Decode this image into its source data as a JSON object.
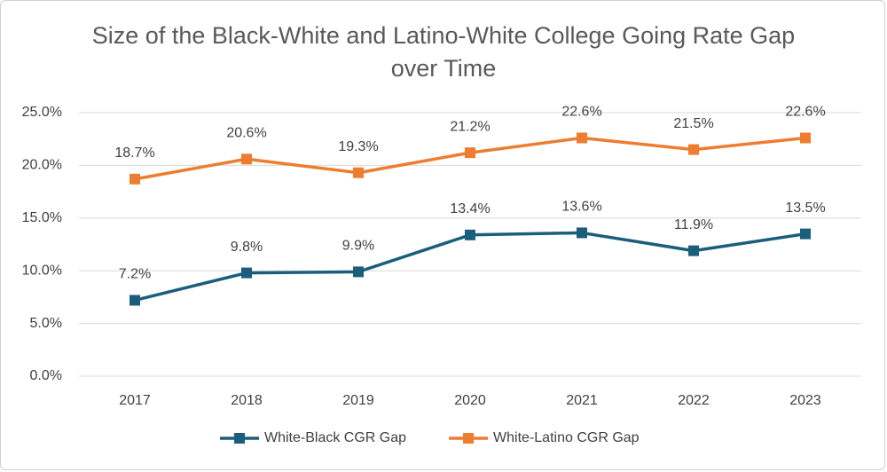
{
  "chart_data": {
    "type": "line",
    "title": "Size of the Black-White and Latino-White College Going Rate Gap over Time",
    "categories": [
      "2017",
      "2018",
      "2019",
      "2020",
      "2021",
      "2022",
      "2023"
    ],
    "series": [
      {
        "name": "White-Black CGR Gap",
        "color": "#1b5e7b",
        "values": [
          7.2,
          9.8,
          9.9,
          13.4,
          13.6,
          11.9,
          13.5
        ],
        "value_labels": [
          "7.2%",
          "9.8%",
          "9.9%",
          "13.4%",
          "13.6%",
          "11.9%",
          "13.5%"
        ]
      },
      {
        "name": "White-Latino CGR Gap",
        "color": "#ed7d31",
        "values": [
          18.7,
          20.6,
          19.3,
          21.2,
          22.6,
          21.5,
          22.6
        ],
        "value_labels": [
          "18.7%",
          "20.6%",
          "19.3%",
          "21.2%",
          "22.6%",
          "21.5%",
          "22.6%"
        ]
      }
    ],
    "ylim": [
      0,
      25
    ],
    "yticks": [
      {
        "value": 0,
        "label": "0.0%"
      },
      {
        "value": 5,
        "label": "5.0%"
      },
      {
        "value": 10,
        "label": "10.0%"
      },
      {
        "value": 15,
        "label": "15.0%"
      },
      {
        "value": 20,
        "label": "20.0%"
      },
      {
        "value": 25,
        "label": "25.0%"
      }
    ],
    "grid": true,
    "legend": "bottom"
  }
}
